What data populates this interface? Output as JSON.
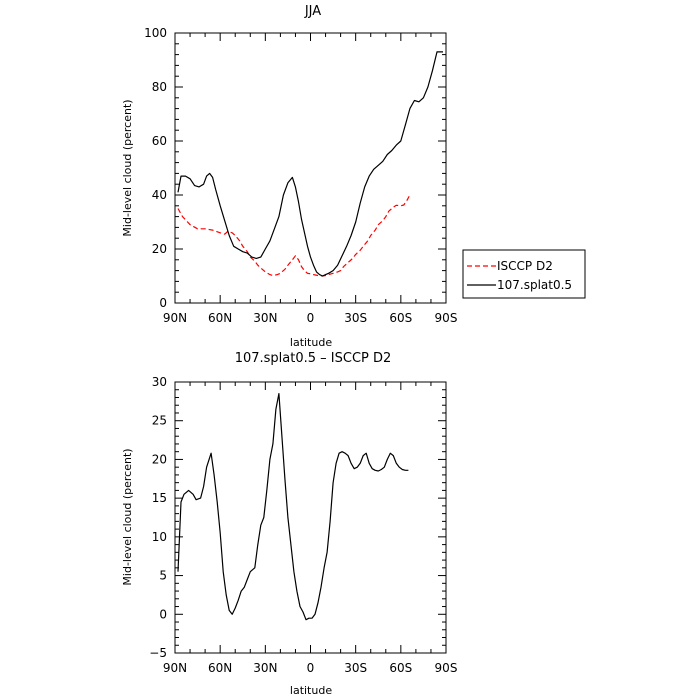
{
  "chart_data": [
    {
      "type": "line",
      "title": "JJA",
      "xlabel": "latitude",
      "ylabel": "Mid-level cloud (percent)",
      "xlim": [
        90,
        -90
      ],
      "ylim": [
        0,
        100
      ],
      "xticks": [
        90,
        60,
        30,
        0,
        -30,
        -60,
        -90
      ],
      "xtick_labels": [
        "90N",
        "60N",
        "30N",
        "0",
        "30S",
        "60S",
        "90S"
      ],
      "yticks": [
        0,
        20,
        40,
        60,
        80,
        100
      ],
      "ytick_labels": [
        "0",
        "20",
        "40",
        "60",
        "80",
        "100"
      ],
      "legend_position": "right",
      "series": [
        {
          "name": "ISCCP D2",
          "color": "#ff0000",
          "dash": "dashed",
          "x": [
            88,
            85,
            80,
            75,
            70,
            65,
            60,
            57,
            55,
            52,
            50,
            47,
            45,
            42,
            40,
            37,
            35,
            32,
            30,
            27,
            25,
            22,
            20,
            17,
            15,
            12,
            10,
            8,
            6,
            4,
            2,
            0,
            -2,
            -5,
            -8,
            -10,
            -12,
            -15,
            -18,
            -20,
            -22,
            -25,
            -28,
            -30,
            -33,
            -35,
            -38,
            -40,
            -43,
            -45,
            -48,
            -50,
            -52,
            -55,
            -57,
            -60,
            -62,
            -64,
            -66
          ],
          "y": [
            35,
            32,
            29,
            27.5,
            27.5,
            27,
            26,
            25.5,
            26.5,
            26,
            25,
            23,
            21,
            19,
            17,
            15.5,
            14,
            12.5,
            11.5,
            10.5,
            10.2,
            10.5,
            11,
            12.5,
            14,
            16,
            17.5,
            16,
            13.5,
            12,
            11,
            10.8,
            10.5,
            10.2,
            10,
            10.2,
            10.5,
            11,
            11.5,
            12,
            13.5,
            15,
            16.5,
            18,
            19.5,
            21,
            23,
            25,
            27,
            29,
            30.5,
            32,
            34,
            35.5,
            36.2,
            36,
            36.3,
            38,
            40
          ]
        },
        {
          "name": "107.splat0.5",
          "color": "#000000",
          "dash": "solid",
          "x": [
            88,
            86,
            83,
            80,
            77,
            74,
            71,
            69,
            67,
            65,
            63,
            60,
            57,
            54,
            51,
            48,
            45,
            42,
            39,
            36,
            33,
            30,
            27,
            24,
            21,
            18,
            15,
            12,
            10,
            8,
            6,
            4,
            2,
            0,
            -2,
            -4,
            -6,
            -8,
            -10,
            -12,
            -15,
            -18,
            -21,
            -24,
            -27,
            -30,
            -33,
            -36,
            -39,
            -42,
            -45,
            -48,
            -51,
            -54,
            -57,
            -60,
            -63,
            -66,
            -69,
            -72,
            -75,
            -78,
            -81,
            -84,
            -86,
            -88
          ],
          "y": [
            41,
            47,
            47,
            46,
            43.5,
            43,
            44,
            47,
            48,
            46.5,
            42,
            36,
            30.5,
            25,
            21,
            20,
            19,
            18.5,
            17,
            16.5,
            17,
            20,
            23,
            27.5,
            32,
            40,
            44.5,
            46.5,
            43,
            37.5,
            31,
            26,
            21,
            17,
            14,
            11.5,
            10.5,
            10,
            10.5,
            11,
            12,
            14,
            17.5,
            21,
            25,
            30,
            37,
            43,
            47,
            49.5,
            51,
            52.5,
            55,
            56.5,
            58.5,
            60,
            66,
            72,
            75,
            74.5,
            76,
            80,
            86,
            93,
            93,
            93
          ]
        }
      ]
    },
    {
      "type": "line",
      "title": "107.splat0.5 – ISCCP D2",
      "xlabel": "latitude",
      "ylabel": "Mid-level cloud (percent)",
      "xlim": [
        90,
        -90
      ],
      "ylim": [
        -5,
        30
      ],
      "xticks": [
        90,
        60,
        30,
        0,
        -30,
        -60,
        -90
      ],
      "xtick_labels": [
        "90N",
        "60N",
        "30N",
        "0",
        "30S",
        "60S",
        "90S"
      ],
      "yticks": [
        -5,
        0,
        5,
        10,
        15,
        20,
        25,
        30
      ],
      "ytick_labels": [
        "−5",
        "0",
        "5",
        "10",
        "15",
        "20",
        "25",
        "30"
      ],
      "series": [
        {
          "color": "#000000",
          "dash": "solid",
          "x": [
            88,
            86,
            84,
            81,
            78,
            76,
            73,
            71,
            69,
            66,
            64,
            62,
            60,
            58,
            56,
            54,
            52,
            50,
            48,
            46,
            44,
            42,
            40,
            37,
            35,
            33,
            31,
            29,
            27,
            25,
            23,
            21,
            19,
            17,
            15,
            13,
            11,
            9,
            7,
            5,
            3,
            1,
            -1,
            -3,
            -5,
            -7,
            -9,
            -11,
            -13,
            -15,
            -17,
            -19,
            -21,
            -23,
            -25,
            -27,
            -29,
            -31,
            -33,
            -35,
            -37,
            -39,
            -41,
            -43,
            -45,
            -47,
            -49,
            -51,
            -53,
            -55,
            -57,
            -59,
            -61,
            -63,
            -65
          ],
          "y": [
            5.5,
            14.5,
            15.5,
            16,
            15.5,
            14.8,
            15,
            16.5,
            19,
            20.8,
            18,
            14.5,
            10.5,
            5.5,
            2.5,
            0.5,
            0,
            0.8,
            1.8,
            3,
            3.5,
            4.5,
            5.5,
            6,
            9,
            11.5,
            12.5,
            16,
            20,
            22,
            26.5,
            28.5,
            23,
            17.5,
            12.5,
            9,
            5.5,
            3,
            1,
            0.3,
            -0.7,
            -0.5,
            -0.5,
            0,
            1.5,
            3.5,
            6,
            8,
            12,
            17,
            19.5,
            20.8,
            21,
            20.8,
            20.5,
            19.5,
            18.8,
            19,
            19.5,
            20.5,
            20.8,
            19.5,
            18.8,
            18.6,
            18.5,
            18.7,
            19,
            20,
            20.8,
            20.5,
            19.5,
            19,
            18.7,
            18.6,
            18.6
          ]
        }
      ]
    }
  ]
}
